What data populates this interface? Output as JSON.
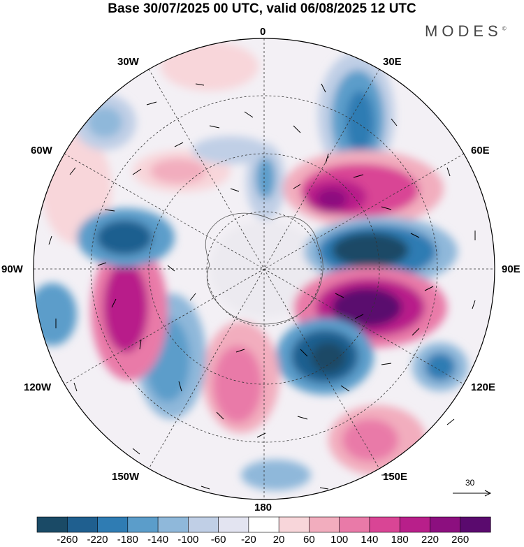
{
  "title": "Base 30/07/2025 00 UTC, valid 06/08/2025 12 UTC",
  "brand": "MODES",
  "brand_mark": "©",
  "meridian_labels": {
    "m0": "0",
    "m30e": "30E",
    "m60e": "60E",
    "m90e": "90E",
    "m120e": "120E",
    "m150e": "150E",
    "m180": "180",
    "m150w": "150W",
    "m120w": "120W",
    "m90w": "90W",
    "m60w": "60W",
    "m30w": "30W"
  },
  "reference_vector": "30",
  "colorbar": {
    "colors": [
      "#1a4a66",
      "#1f5f8f",
      "#2f7cb3",
      "#5b9dca",
      "#8fb8da",
      "#c0cfe6",
      "#e3e4f1",
      "#ffffff",
      "#f8d6da",
      "#f2adbe",
      "#e97aa8",
      "#d94595",
      "#b81f8a",
      "#8c0f7f",
      "#5a0a6e"
    ],
    "labels": [
      "-260",
      "-220",
      "-180",
      "-140",
      "-100",
      "-60",
      "-20",
      "20",
      "60",
      "100",
      "140",
      "180",
      "220",
      "260"
    ]
  }
}
